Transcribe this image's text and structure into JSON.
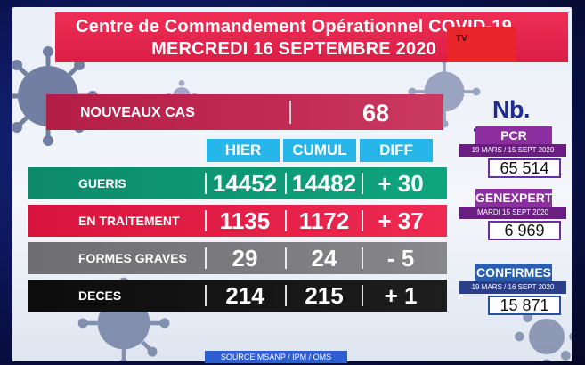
{
  "header": {
    "line1": "Centre de Commandement Opérationnel COVID-19",
    "line2": "MERCREDI 16 SEPTEMBRE 2020",
    "channel_logo": "TV"
  },
  "nouveaux_cas": {
    "label": "NOUVEAUX CAS",
    "value": "68"
  },
  "columns": [
    "HIER",
    "CUMUL",
    "DIFF"
  ],
  "rows": [
    {
      "label": "GUERIS",
      "hier": "14452",
      "cumul": "14482",
      "diff": "+ 30",
      "color": "#0fa57e"
    },
    {
      "label": "EN TRAITEMENT",
      "hier": "1135",
      "cumul": "1172",
      "diff": "+ 37",
      "color": "#ef2a52"
    },
    {
      "label": "FORMES GRAVES",
      "hier": "29",
      "cumul": "24",
      "diff": "- 5",
      "color": "#88888c"
    },
    {
      "label": "DECES",
      "hier": "214",
      "cumul": "215",
      "diff": "+ 1",
      "color": "#111111"
    }
  ],
  "tests": {
    "title": "Nb. TESTS",
    "pcr": {
      "label": "PCR",
      "period": "19 MARS / 15 SEPT 2020",
      "value": "65 514"
    },
    "genexpert": {
      "label": "GENEXPERT",
      "period": "MARDI 15 SEPT 2020",
      "value": "6 969"
    },
    "confirmes": {
      "label": "CONFIRMES",
      "period": "19 MARS / 16 SEPT 2020",
      "value": "15 871"
    }
  },
  "source": "SOURCE MSANP / IPM / OMS",
  "colors": {
    "header_red": "#e8264e",
    "header_blue": "#27b6ea",
    "tests_purple": "#8c2fa0",
    "tests_blue": "#2a5fb0"
  }
}
